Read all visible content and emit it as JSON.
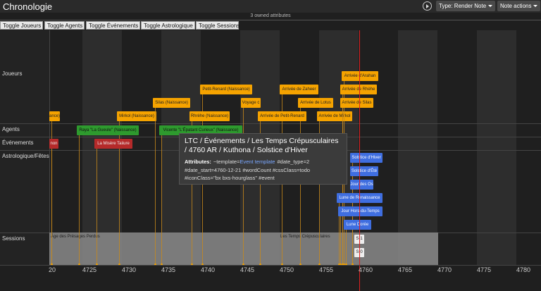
{
  "header": {
    "title": "Chronologie",
    "buttons": [
      "Type: Render Note",
      "Note actions"
    ]
  },
  "owned_attributes": "3 owned attributes",
  "toggles": [
    "Toggle Joueurs",
    "Toggle Agents",
    "Toggle Événements",
    "Toggle Astrologique",
    "Toggle Sessions"
  ],
  "rows": [
    "Joueurs",
    "Agents",
    "Événements",
    "Astrologique/Fêtes",
    "Sessions"
  ],
  "joueurs": [
    "ance)",
    "Mirkol (Naissance)",
    "Silas (Naissance)",
    "Petit-Renard (Naissance)",
    "Voyage c",
    "Rhrèhe (Naissance)",
    "Arrivée de Zaheer",
    "Arrivée de Lotus",
    "Arrivée de Petit-Renard",
    "Arrivée de Mirkol",
    "Arrivée d'Arahan",
    "Arrivée de Rhèhe",
    "Arrivée de Silas"
  ],
  "agents": [
    "Raya \"La Gueule\" (Naissance)",
    "Vicente \"L'Épatant Curieux\" (Naissance)"
  ],
  "evenements": [
    "non",
    "La Misère Taiiure"
  ],
  "astrologique": [
    "Solstice d'Hiver",
    "Solstice d'Été",
    "Jour des Os",
    "Lune de Renaissance",
    "Jour Hors-du-Temps",
    "Lune Dorée"
  ],
  "sessions": {
    "ranges": [
      "Âge des Présages Perdus",
      "Les Temps Crépusculaires"
    ],
    "items": [
      "S-1",
      "S-0"
    ]
  },
  "axis": [
    "20",
    "4725",
    "4730",
    "4735",
    "4740",
    "4745",
    "4750",
    "4755",
    "4760",
    "4765",
    "4770",
    "4775",
    "4780"
  ],
  "tooltip": {
    "title": "LTC / Événements / Les Temps Crépusculaires / 4760 AR / Kuthona / Solstice d'Hiver",
    "attributes_label": "Attributes:",
    "attributes": [
      "~template=",
      "Event template",
      "#date_type=2 #date_start=4760-12-21 #wordCount #cssClass=todo #iconClass=\"bx bxs-hourglass\" #event"
    ]
  }
}
